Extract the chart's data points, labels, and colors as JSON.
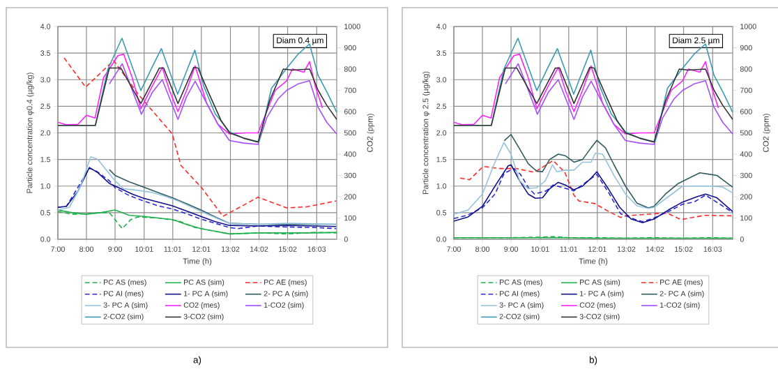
{
  "chart_data": [
    {
      "type": "line",
      "xlabel": "Time (h)",
      "ylabel": "Particle concentration φ0.4 (µg/kg)",
      "y2label": "CO2 (ppm)",
      "annotations": [
        "Diam 0.4 µm",
        "a)"
      ],
      "grid": true,
      "legend": "bottom",
      "xlim": [
        7,
        16.75
      ],
      "xticks": [
        {
          "value": 7,
          "label": "7:00"
        },
        {
          "value": 8,
          "label": "8:00"
        },
        {
          "value": 9,
          "label": "9:00"
        },
        {
          "value": 10.017,
          "label": "10:01"
        },
        {
          "value": 11.017,
          "label": "11:01"
        },
        {
          "value": 12.017,
          "label": "12:01"
        },
        {
          "value": 13.033,
          "label": "13:02"
        },
        {
          "value": 14.033,
          "label": "14:02"
        },
        {
          "value": 15.033,
          "label": "15:02"
        },
        {
          "value": 16.05,
          "label": "16:03"
        }
      ],
      "ylim": [
        0,
        4
      ],
      "yticks": [
        {
          "value": 0,
          "label": "0.0"
        },
        {
          "value": 0.5,
          "label": "0.5"
        },
        {
          "value": 1,
          "label": "1.0"
        },
        {
          "value": 1.5,
          "label": "1.5"
        },
        {
          "value": 2,
          "label": "2.0"
        },
        {
          "value": 2.5,
          "label": "2.5"
        },
        {
          "value": 3,
          "label": "3.0"
        },
        {
          "value": 3.5,
          "label": "3.5"
        },
        {
          "value": 4,
          "label": "4.0"
        }
      ],
      "y2lim": [
        0,
        1000
      ],
      "y2ticks": [
        0,
        100,
        200,
        300,
        400,
        500,
        600,
        700,
        800,
        900,
        1000
      ],
      "series": [
        {
          "name": "PC AS (mes)",
          "color": "#1db04b",
          "line_style": "dashed",
          "x": [
            7,
            7.5,
            8,
            8.5,
            8.8,
            9.0,
            9.25,
            9.55,
            9.8,
            10.5,
            11.2,
            11.8,
            12.5,
            13,
            14,
            15,
            16,
            16.75
          ],
          "values": [
            0.52,
            0.47,
            0.48,
            0.5,
            0.5,
            0.37,
            0.2,
            0.37,
            0.42,
            0.4,
            0.35,
            0.22,
            0.15,
            0.1,
            0.12,
            0.1,
            0.13,
            0.12
          ]
        },
        {
          "name": "PC AS (sim)",
          "color": "#1db04b",
          "line_style": "solid",
          "x": [
            7,
            7.5,
            8,
            8.5,
            9,
            9.5,
            10,
            10.5,
            11,
            11.5,
            12,
            12.5,
            13,
            14,
            15,
            16,
            16.75
          ],
          "values": [
            0.55,
            0.5,
            0.47,
            0.5,
            0.55,
            0.45,
            0.43,
            0.4,
            0.37,
            0.28,
            0.2,
            0.15,
            0.1,
            0.12,
            0.12,
            0.12,
            0.13
          ]
        },
        {
          "name": "PC AE (mes)",
          "color": "#ff2a2a",
          "line_style": "dashed",
          "x": [
            7.22,
            7.97,
            8.95,
            9.85,
            11.0,
            11.3,
            12.04,
            12.77,
            14.0,
            15.0,
            15.7,
            16.73
          ],
          "values": [
            3.41,
            2.86,
            3.36,
            2.7,
            1.98,
            1.39,
            0.96,
            0.43,
            0.79,
            0.59,
            0.61,
            0.72
          ]
        },
        {
          "name": "PC AI (mes)",
          "color": "#2a2ad4",
          "line_style": "dashed",
          "x": [
            7,
            7.3,
            8.1,
            8.3,
            8.8,
            9,
            9.5,
            10,
            10.5,
            11,
            11.5,
            12,
            12.5,
            13,
            13.3,
            14,
            15,
            16,
            16.73
          ],
          "values": [
            0.6,
            0.62,
            1.33,
            1.3,
            1.1,
            0.97,
            0.82,
            0.72,
            0.63,
            0.57,
            0.48,
            0.38,
            0.3,
            0.22,
            0.2,
            0.25,
            0.23,
            0.22,
            0.2
          ]
        },
        {
          "name": "1- PC A (sim)",
          "color": "#10108a",
          "line_style": "solid",
          "x": [
            7,
            7.3,
            7.7,
            8.1,
            8.4,
            8.8,
            9.2,
            9.6,
            10,
            10.5,
            11,
            11.5,
            12,
            12.5,
            13,
            14,
            15,
            16,
            16.73
          ],
          "values": [
            0.6,
            0.62,
            0.9,
            1.35,
            1.25,
            1.05,
            0.95,
            0.85,
            0.77,
            0.7,
            0.63,
            0.53,
            0.43,
            0.33,
            0.26,
            0.25,
            0.26,
            0.25,
            0.24
          ]
        },
        {
          "name": "2- PC A (sim)",
          "color": "#2e5a5e",
          "line_style": "solid",
          "x": [
            8.8,
            9,
            9.5,
            10,
            10.5,
            11,
            11.5,
            12,
            12.5,
            13,
            14,
            15,
            16,
            16.73
          ],
          "values": [
            1.31,
            1.2,
            1.08,
            0.98,
            0.88,
            0.78,
            0.67,
            0.55,
            0.42,
            0.3,
            0.28,
            0.28,
            0.28,
            0.28
          ]
        },
        {
          "name": "3- PC A (sim)",
          "color": "#94c4dc",
          "line_style": "solid",
          "x": [
            7,
            7.4,
            7.8,
            8.15,
            8.4,
            8.7,
            9,
            9.3,
            9.8,
            10.3,
            10.8,
            11.2,
            11.7,
            12.2,
            12.7,
            13,
            14,
            15,
            16,
            16.73
          ],
          "values": [
            0.55,
            0.6,
            1.0,
            1.55,
            1.5,
            1.3,
            1.1,
            0.95,
            0.92,
            0.88,
            0.8,
            0.72,
            0.6,
            0.48,
            0.36,
            0.3,
            0.28,
            0.3,
            0.29,
            0.28
          ]
        },
        {
          "name": "CO2 (mes)",
          "color": "#ff20ff",
          "line_style": "solid",
          "axis": "y2",
          "x": [
            7,
            7.3,
            7.7,
            8,
            8.3,
            8.6,
            9.1,
            9.3,
            9.6,
            9.9,
            10.3,
            10.65,
            10.9,
            11.2,
            11.5,
            11.8,
            12.2,
            12.6,
            13,
            13.5,
            14,
            14.3,
            14.6,
            15,
            15.2,
            15.6,
            15.8,
            16,
            16.25
          ],
          "values": [
            550,
            538,
            540,
            583,
            570,
            760,
            863,
            870,
            760,
            613,
            720,
            808,
            700,
            600,
            700,
            815,
            640,
            540,
            495,
            500,
            500,
            600,
            700,
            745,
            800,
            785,
            835,
            720,
            617
          ]
        },
        {
          "name": "1-CO2 (sim)",
          "color": "#a64dff",
          "line_style": "solid",
          "axis": "y2",
          "x": [
            8.8,
            9.25,
            9.92,
            10.3,
            10.65,
            11.2,
            11.5,
            11.8,
            12.2,
            12.6,
            13,
            13.5,
            14,
            14.3,
            14.7,
            15,
            15.4,
            15.8,
            16.1,
            16.4,
            16.75
          ],
          "values": [
            730,
            825,
            588,
            690,
            750,
            563,
            670,
            743,
            640,
            540,
            464,
            452,
            446,
            570,
            660,
            700,
            730,
            745,
            620,
            550,
            494
          ]
        },
        {
          "name": "2-CO2 (sim)",
          "color": "#3a9ab4",
          "line_style": "solid",
          "axis": "y2",
          "x": [
            7,
            8.31,
            8.75,
            9.24,
            9.9,
            10.3,
            10.62,
            11.19,
            11.5,
            11.79,
            12.1,
            12.5,
            13,
            13.5,
            14.03,
            14.47,
            15.03,
            15.4,
            15.8,
            16.1,
            16.42,
            16.75
          ],
          "values": [
            535,
            535,
            800,
            945,
            699,
            810,
            896,
            682,
            790,
            889,
            720,
            590,
            505,
            475,
            457,
            710,
            809,
            870,
            918,
            770,
            689,
            596
          ]
        },
        {
          "name": "3-CO2 (sim)",
          "color": "#333333",
          "line_style": "solid",
          "axis": "y2",
          "x": [
            7,
            8.31,
            8.8,
            9.2,
            9.9,
            10.55,
            10.7,
            11.2,
            11.75,
            11.9,
            12.3,
            12.7,
            13,
            13.5,
            14,
            14.4,
            14.88,
            15.2,
            15.8,
            16.1,
            16.4,
            16.75
          ],
          "values": [
            535,
            535,
            805,
            805,
            638,
            805,
            805,
            638,
            808,
            805,
            680,
            560,
            500,
            475,
            457,
            650,
            800,
            795,
            800,
            700,
            630,
            563
          ]
        }
      ]
    },
    {
      "type": "line",
      "xlabel": "Time (h)",
      "ylabel": "Particle concentration φ 2.5 (µg/kg)",
      "y2label": "CO2 (ppm)",
      "annotations": [
        "Diam 2.5 µm",
        "b)"
      ],
      "grid": true,
      "legend": "bottom",
      "xlim": [
        7,
        16.75
      ],
      "xticks": [
        {
          "value": 7,
          "label": "7:00"
        },
        {
          "value": 8,
          "label": "8:00"
        },
        {
          "value": 9,
          "label": "9:00"
        },
        {
          "value": 10.017,
          "label": "10:01"
        },
        {
          "value": 11.017,
          "label": "11:01"
        },
        {
          "value": 12.017,
          "label": "12:01"
        },
        {
          "value": 13.033,
          "label": "13:02"
        },
        {
          "value": 14.033,
          "label": "14:02"
        },
        {
          "value": 15.033,
          "label": "15:02"
        },
        {
          "value": 16.05,
          "label": "16:03"
        }
      ],
      "ylim": [
        0,
        4
      ],
      "yticks": [
        {
          "value": 0,
          "label": "0.0"
        },
        {
          "value": 0.5,
          "label": "0.5"
        },
        {
          "value": 1,
          "label": "1.0"
        },
        {
          "value": 1.5,
          "label": "1.5"
        },
        {
          "value": 2,
          "label": "2.0"
        },
        {
          "value": 2.5,
          "label": "2.5"
        },
        {
          "value": 3,
          "label": "3.0"
        },
        {
          "value": 3.5,
          "label": "3.5"
        },
        {
          "value": 4,
          "label": "4.0"
        }
      ],
      "y2lim": [
        0,
        1000
      ],
      "y2ticks": [
        0,
        100,
        200,
        300,
        400,
        500,
        600,
        700,
        800,
        900,
        1000
      ],
      "series": [
        {
          "name": "PC AS (mes)",
          "color": "#1db04b",
          "line_style": "dashed",
          "x": [
            7,
            8,
            9,
            10,
            10.5,
            11,
            12,
            13,
            14,
            15,
            16,
            16.75
          ],
          "values": [
            0.03,
            0.03,
            0.03,
            0.04,
            0.05,
            0.03,
            0.03,
            0.02,
            0.03,
            0.02,
            0.03,
            0.02
          ]
        },
        {
          "name": "PC AS (sim)",
          "color": "#1db04b",
          "line_style": "solid",
          "x": [
            7,
            8,
            9,
            10,
            11,
            12,
            13,
            14,
            15,
            16,
            16.75
          ],
          "values": [
            0.03,
            0.03,
            0.03,
            0.03,
            0.03,
            0.02,
            0.02,
            0.02,
            0.02,
            0.02,
            0.02
          ]
        },
        {
          "name": "PC AE (mes)",
          "color": "#ff2a2a",
          "line_style": "dashed",
          "x": [
            7.22,
            7.55,
            8.03,
            8.6,
            9.17,
            9.82,
            10.47,
            10.88,
            11.2,
            11.37,
            11.93,
            12.42,
            12.83,
            13.0,
            14.0,
            14.46,
            14.95,
            15.76,
            16.75
          ],
          "values": [
            1.15,
            1.12,
            1.37,
            1.33,
            1.33,
            1.26,
            1.48,
            1.26,
            0.83,
            0.72,
            0.67,
            0.52,
            0.41,
            0.44,
            0.48,
            0.49,
            0.37,
            0.45,
            0.44
          ]
        },
        {
          "name": "PC AI (mes)",
          "color": "#2a2ad4",
          "line_style": "dashed",
          "x": [
            7,
            7.46,
            8,
            8.44,
            8.76,
            9.09,
            9.33,
            9.62,
            9.82,
            10.23,
            10.47,
            10.88,
            11.2,
            12.0,
            12.42,
            12.83,
            13.3,
            13.6,
            14,
            14.5,
            15,
            15.4,
            15.8,
            16.3,
            16.75
          ],
          "values": [
            0.39,
            0.45,
            0.59,
            0.85,
            1.24,
            1.33,
            1.22,
            0.96,
            0.85,
            0.91,
            1.02,
            0.96,
            0.91,
            1.22,
            0.87,
            0.48,
            0.38,
            0.33,
            0.4,
            0.52,
            0.66,
            0.7,
            0.83,
            0.66,
            0.5
          ]
        },
        {
          "name": "1- PC A (sim)",
          "color": "#10108a",
          "line_style": "solid",
          "x": [
            7,
            7.5,
            8,
            8.5,
            8.9,
            9.0,
            9.3,
            9.6,
            9.85,
            10.1,
            10.35,
            10.65,
            10.9,
            11.2,
            11.5,
            11.8,
            12.0,
            12.4,
            12.8,
            13.2,
            13.6,
            14.0,
            14.5,
            15.0,
            15.5,
            15.8,
            16.2,
            16.75
          ],
          "values": [
            0.34,
            0.42,
            0.62,
            1.05,
            1.38,
            1.4,
            1.1,
            0.85,
            0.77,
            0.78,
            0.95,
            1.07,
            1.02,
            0.93,
            1.0,
            1.15,
            1.27,
            0.95,
            0.6,
            0.38,
            0.31,
            0.38,
            0.55,
            0.7,
            0.8,
            0.85,
            0.78,
            0.52
          ]
        },
        {
          "name": "2- PC A (sim)",
          "color": "#2e5a5e",
          "line_style": "solid",
          "x": [
            8.76,
            9.0,
            9.3,
            9.6,
            9.9,
            10.1,
            10.35,
            10.65,
            10.9,
            11.2,
            11.5,
            11.8,
            12.0,
            12.3,
            12.6,
            13.0,
            13.4,
            13.8,
            14.0,
            14.4,
            14.85,
            15.6,
            16.2,
            16.75
          ],
          "values": [
            1.85,
            1.97,
            1.7,
            1.42,
            1.28,
            1.27,
            1.5,
            1.6,
            1.57,
            1.45,
            1.5,
            1.72,
            1.86,
            1.72,
            1.4,
            1.0,
            0.68,
            0.59,
            0.62,
            0.85,
            1.05,
            1.25,
            1.2,
            0.98
          ]
        },
        {
          "name": "3- PC A (sim)",
          "color": "#94c4dc",
          "line_style": "solid",
          "x": [
            7,
            7.5,
            8,
            8.4,
            8.75,
            9.0,
            9.3,
            9.6,
            9.9,
            10.2,
            10.45,
            10.6,
            10.9,
            11.2,
            11.5,
            11.8,
            11.95,
            12.2,
            12.6,
            13.0,
            13.4,
            13.8,
            14.0,
            14.5,
            15.0,
            15.5,
            16.0,
            16.4,
            16.75
          ],
          "values": [
            0.47,
            0.55,
            0.85,
            1.4,
            1.82,
            1.6,
            1.1,
            0.95,
            0.97,
            1.1,
            1.4,
            1.27,
            1.3,
            1.3,
            1.45,
            1.45,
            1.62,
            1.6,
            1.2,
            0.85,
            0.63,
            0.58,
            0.6,
            0.8,
            1.0,
            1.0,
            1.0,
            0.98,
            0.87
          ]
        },
        {
          "name": "CO2 (mes)",
          "color": "#ff20ff",
          "line_style": "solid",
          "axis": "y2",
          "x": [
            7,
            7.3,
            7.7,
            8,
            8.3,
            8.6,
            9.1,
            9.3,
            9.6,
            9.9,
            10.3,
            10.65,
            10.9,
            11.2,
            11.5,
            11.8,
            12.2,
            12.6,
            13,
            13.5,
            14,
            14.3,
            14.6,
            15,
            15.2,
            15.6,
            15.8,
            16,
            16.25
          ],
          "values": [
            550,
            538,
            540,
            583,
            570,
            760,
            863,
            870,
            760,
            613,
            720,
            808,
            700,
            600,
            700,
            815,
            640,
            540,
            495,
            500,
            500,
            600,
            700,
            745,
            800,
            785,
            835,
            720,
            617
          ]
        },
        {
          "name": "1-CO2 (sim)",
          "color": "#a64dff",
          "line_style": "solid",
          "axis": "y2",
          "x": [
            8.8,
            9.25,
            9.92,
            10.3,
            10.65,
            11.2,
            11.5,
            11.8,
            12.2,
            12.6,
            13,
            13.5,
            14,
            14.3,
            14.7,
            15,
            15.4,
            15.8,
            16.1,
            16.4,
            16.75
          ],
          "values": [
            730,
            825,
            588,
            690,
            750,
            563,
            670,
            743,
            640,
            540,
            464,
            452,
            446,
            570,
            660,
            700,
            730,
            745,
            620,
            550,
            494
          ]
        },
        {
          "name": "2-CO2 (sim)",
          "color": "#3a9ab4",
          "line_style": "solid",
          "axis": "y2",
          "x": [
            7,
            8.31,
            8.75,
            9.24,
            9.9,
            10.3,
            10.62,
            11.19,
            11.5,
            11.79,
            12.1,
            12.5,
            13,
            13.5,
            14.03,
            14.47,
            15.03,
            15.4,
            15.8,
            16.1,
            16.42,
            16.75
          ],
          "values": [
            535,
            535,
            800,
            945,
            699,
            810,
            896,
            682,
            790,
            889,
            720,
            590,
            505,
            475,
            457,
            710,
            809,
            870,
            918,
            770,
            689,
            596
          ]
        },
        {
          "name": "3-CO2 (sim)",
          "color": "#333333",
          "line_style": "solid",
          "axis": "y2",
          "x": [
            7,
            8.31,
            8.8,
            9.2,
            9.9,
            10.55,
            10.7,
            11.2,
            11.75,
            11.9,
            12.3,
            12.7,
            13,
            13.5,
            14,
            14.4,
            14.88,
            15.2,
            15.8,
            16.1,
            16.4,
            16.75
          ],
          "values": [
            535,
            535,
            805,
            805,
            638,
            805,
            805,
            638,
            808,
            805,
            680,
            560,
            500,
            475,
            457,
            650,
            800,
            795,
            800,
            700,
            630,
            563
          ]
        }
      ]
    }
  ]
}
